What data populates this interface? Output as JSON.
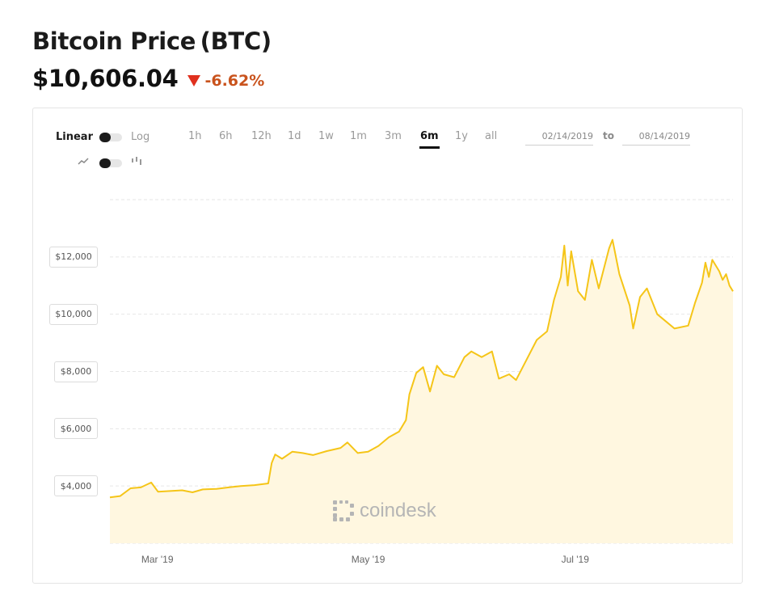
{
  "header": {
    "title": "Bitcoin Price (BTC)",
    "price": "$10,606.04",
    "change": "-6.62%",
    "change_color": "#c9531d",
    "change_direction_icon": "down-triangle-icon"
  },
  "controls": {
    "scale_linear": "Linear",
    "scale_log": "Log",
    "ranges": [
      "1h",
      "6h",
      "12h",
      "1d",
      "1w",
      "1m",
      "3m",
      "6m",
      "1y",
      "all"
    ],
    "active_range": "6m",
    "date_from": "02/14/2019",
    "date_to": "08/14/2019",
    "to_label": "to",
    "line_icon": "line-chart-icon",
    "candle_icon": "candlestick-icon"
  },
  "watermark": "coindesk",
  "chart_data": {
    "type": "area",
    "line_color": "#f5c518",
    "fill_color": "#fff7e0",
    "grid": true,
    "x_tick_labels": [
      "Mar '19",
      "May '19",
      "Jul '19"
    ],
    "y_tick_labels": [
      "$4,000",
      "$6,000",
      "$8,000",
      "$10,000",
      "$12,000"
    ],
    "y_ticks": [
      4000,
      6000,
      8000,
      10000,
      12000
    ],
    "ylim": [
      2000,
      14000
    ],
    "xlim": [
      "2019-02-14",
      "2019-08-14"
    ],
    "x_ticks": [
      "2019-03-01",
      "2019-05-01",
      "2019-07-01"
    ],
    "series": [
      {
        "points": [
          [
            "2019-02-14",
            3600
          ],
          [
            "2019-02-17",
            3650
          ],
          [
            "2019-02-20",
            3920
          ],
          [
            "2019-02-23",
            3950
          ],
          [
            "2019-02-26",
            4120
          ],
          [
            "2019-02-28",
            3800
          ],
          [
            "2019-03-03",
            3820
          ],
          [
            "2019-03-07",
            3850
          ],
          [
            "2019-03-10",
            3780
          ],
          [
            "2019-03-13",
            3880
          ],
          [
            "2019-03-17",
            3900
          ],
          [
            "2019-03-21",
            3960
          ],
          [
            "2019-03-24",
            4000
          ],
          [
            "2019-03-28",
            4030
          ],
          [
            "2019-04-01",
            4090
          ],
          [
            "2019-04-02",
            4800
          ],
          [
            "2019-04-03",
            5100
          ],
          [
            "2019-04-05",
            4950
          ],
          [
            "2019-04-08",
            5200
          ],
          [
            "2019-04-11",
            5150
          ],
          [
            "2019-04-14",
            5080
          ],
          [
            "2019-04-18",
            5220
          ],
          [
            "2019-04-22",
            5330
          ],
          [
            "2019-04-24",
            5520
          ],
          [
            "2019-04-27",
            5150
          ],
          [
            "2019-04-30",
            5200
          ],
          [
            "2019-05-03",
            5400
          ],
          [
            "2019-05-06",
            5700
          ],
          [
            "2019-05-09",
            5900
          ],
          [
            "2019-05-11",
            6300
          ],
          [
            "2019-05-12",
            7200
          ],
          [
            "2019-05-14",
            7950
          ],
          [
            "2019-05-16",
            8150
          ],
          [
            "2019-05-18",
            7300
          ],
          [
            "2019-05-20",
            8200
          ],
          [
            "2019-05-22",
            7900
          ],
          [
            "2019-05-25",
            7800
          ],
          [
            "2019-05-28",
            8500
          ],
          [
            "2019-05-30",
            8700
          ],
          [
            "2019-06-02",
            8500
          ],
          [
            "2019-06-05",
            8700
          ],
          [
            "2019-06-07",
            7750
          ],
          [
            "2019-06-10",
            7900
          ],
          [
            "2019-06-12",
            7700
          ],
          [
            "2019-06-15",
            8400
          ],
          [
            "2019-06-18",
            9100
          ],
          [
            "2019-06-21",
            9400
          ],
          [
            "2019-06-23",
            10500
          ],
          [
            "2019-06-25",
            11300
          ],
          [
            "2019-06-26",
            12400
          ],
          [
            "2019-06-27",
            11000
          ],
          [
            "2019-06-28",
            12200
          ],
          [
            "2019-06-30",
            10800
          ],
          [
            "2019-07-02",
            10500
          ],
          [
            "2019-07-04",
            11900
          ],
          [
            "2019-07-06",
            10900
          ],
          [
            "2019-07-09",
            12300
          ],
          [
            "2019-07-10",
            12600
          ],
          [
            "2019-07-12",
            11400
          ],
          [
            "2019-07-15",
            10300
          ],
          [
            "2019-07-16",
            9500
          ],
          [
            "2019-07-18",
            10600
          ],
          [
            "2019-07-20",
            10900
          ],
          [
            "2019-07-23",
            10000
          ],
          [
            "2019-07-26",
            9700
          ],
          [
            "2019-07-28",
            9500
          ],
          [
            "2019-08-01",
            9600
          ],
          [
            "2019-08-03",
            10400
          ],
          [
            "2019-08-05",
            11100
          ],
          [
            "2019-08-06",
            11800
          ],
          [
            "2019-08-07",
            11300
          ],
          [
            "2019-08-08",
            11900
          ],
          [
            "2019-08-10",
            11500
          ],
          [
            "2019-08-11",
            11200
          ],
          [
            "2019-08-12",
            11400
          ],
          [
            "2019-08-13",
            11000
          ],
          [
            "2019-08-14",
            10800
          ]
        ]
      }
    ]
  }
}
